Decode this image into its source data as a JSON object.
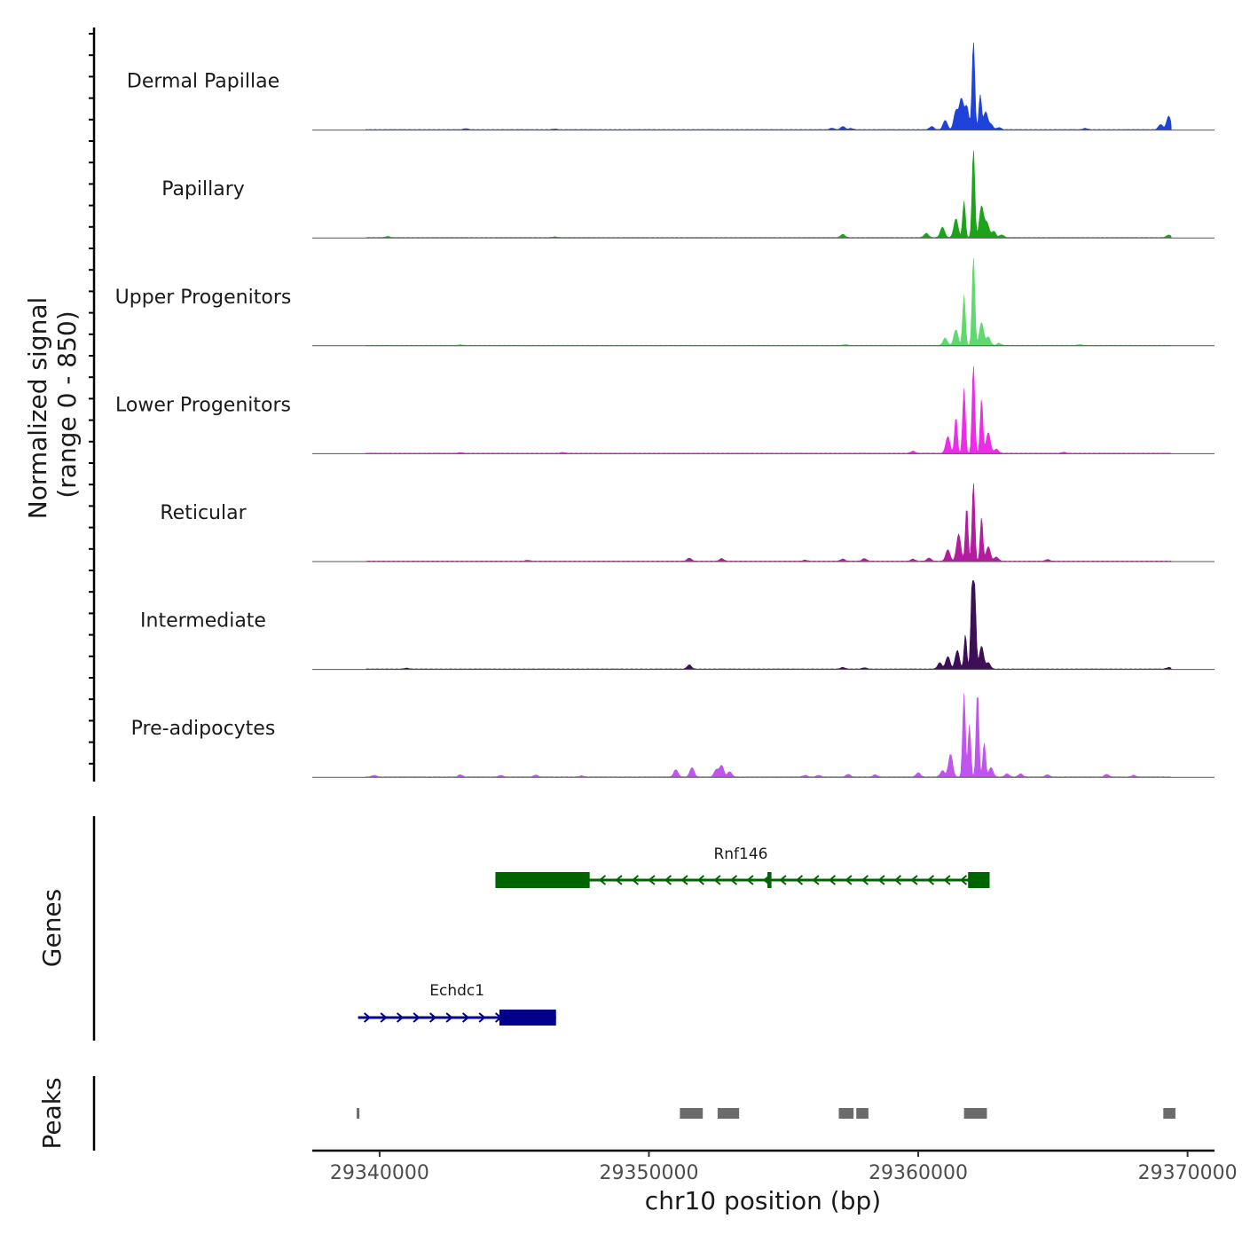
{
  "chart_data": {
    "type": "area",
    "title": "",
    "xlabel": "chr10 position (bp)",
    "ylabel_line1": "Normalized signal",
    "ylabel_line2": "(range 0 - 850)",
    "y_range": [
      0,
      850
    ],
    "xlim": [
      29337500,
      29371000
    ],
    "x_ticks": [
      29340000,
      29350000,
      29360000,
      29370000
    ],
    "x_tick_labels": [
      "29340000",
      "29350000",
      "29360000",
      "29370000"
    ],
    "tracks": [
      {
        "name": "Dermal Papillae",
        "color": "#1f43d9",
        "peaks": [
          [
            29343200,
            10
          ],
          [
            29346500,
            6
          ],
          [
            29356800,
            14
          ],
          [
            29357200,
            30
          ],
          [
            29357500,
            12
          ],
          [
            29360500,
            30
          ],
          [
            29361000,
            90
          ],
          [
            29361400,
            180
          ],
          [
            29361600,
            290
          ],
          [
            29361800,
            220
          ],
          [
            29362050,
            850
          ],
          [
            29362300,
            330
          ],
          [
            29362500,
            170
          ],
          [
            29362700,
            50
          ],
          [
            29363000,
            20
          ],
          [
            29366200,
            12
          ],
          [
            29369000,
            50
          ],
          [
            29369300,
            130
          ]
        ]
      },
      {
        "name": "Papillary",
        "color": "#1ca31a",
        "peaks": [
          [
            29340300,
            10
          ],
          [
            29346500,
            6
          ],
          [
            29357200,
            30
          ],
          [
            29360300,
            40
          ],
          [
            29360900,
            100
          ],
          [
            29361400,
            180
          ],
          [
            29361700,
            350
          ],
          [
            29362050,
            850
          ],
          [
            29362350,
            300
          ],
          [
            29362550,
            140
          ],
          [
            29362800,
            60
          ],
          [
            29363100,
            25
          ],
          [
            29369300,
            25
          ]
        ]
      },
      {
        "name": "Upper Progenitors",
        "color": "#5fd96e",
        "peaks": [
          [
            29343000,
            6
          ],
          [
            29357300,
            8
          ],
          [
            29361000,
            70
          ],
          [
            29361400,
            150
          ],
          [
            29361700,
            480
          ],
          [
            29362050,
            850
          ],
          [
            29362350,
            220
          ],
          [
            29362600,
            80
          ],
          [
            29363000,
            20
          ],
          [
            29366000,
            8
          ]
        ]
      },
      {
        "name": "Lower Progenitors",
        "color": "#ec2ce6",
        "peaks": [
          [
            29343000,
            6
          ],
          [
            29346800,
            8
          ],
          [
            29359800,
            20
          ],
          [
            29361100,
            160
          ],
          [
            29361400,
            350
          ],
          [
            29361700,
            620
          ],
          [
            29362050,
            850
          ],
          [
            29362350,
            520
          ],
          [
            29362600,
            200
          ],
          [
            29362900,
            40
          ],
          [
            29365400,
            10
          ]
        ]
      },
      {
        "name": "Reticular",
        "color": "#b31c9f",
        "peaks": [
          [
            29345500,
            8
          ],
          [
            29351500,
            30
          ],
          [
            29352700,
            25
          ],
          [
            29355800,
            10
          ],
          [
            29357200,
            20
          ],
          [
            29358000,
            25
          ],
          [
            29359800,
            20
          ],
          [
            29360400,
            30
          ],
          [
            29361100,
            110
          ],
          [
            29361500,
            260
          ],
          [
            29361800,
            520
          ],
          [
            29362050,
            760
          ],
          [
            29362350,
            420
          ],
          [
            29362600,
            140
          ],
          [
            29362900,
            40
          ],
          [
            29364800,
            15
          ]
        ]
      },
      {
        "name": "Intermediate",
        "color": "#3d0f57",
        "peaks": [
          [
            29341000,
            8
          ],
          [
            29351500,
            40
          ],
          [
            29357200,
            15
          ],
          [
            29358000,
            12
          ],
          [
            29360800,
            60
          ],
          [
            29361100,
            120
          ],
          [
            29361450,
            180
          ],
          [
            29361750,
            330
          ],
          [
            29362000,
            800
          ],
          [
            29362100,
            700
          ],
          [
            29362350,
            220
          ],
          [
            29362600,
            60
          ],
          [
            29369300,
            15
          ]
        ]
      },
      {
        "name": "Pre-adipocytes",
        "color": "#c054ef",
        "peaks": [
          [
            29339800,
            15
          ],
          [
            29343000,
            20
          ],
          [
            29344500,
            15
          ],
          [
            29345800,
            18
          ],
          [
            29347500,
            10
          ],
          [
            29351000,
            70
          ],
          [
            29351600,
            90
          ],
          [
            29352500,
            70
          ],
          [
            29352700,
            110
          ],
          [
            29353000,
            50
          ],
          [
            29355800,
            15
          ],
          [
            29356300,
            15
          ],
          [
            29357400,
            25
          ],
          [
            29358400,
            20
          ],
          [
            29360000,
            40
          ],
          [
            29360900,
            60
          ],
          [
            29361200,
            220
          ],
          [
            29361700,
            800
          ],
          [
            29361900,
            500
          ],
          [
            29362200,
            820
          ],
          [
            29362450,
            330
          ],
          [
            29362700,
            90
          ],
          [
            29363300,
            30
          ],
          [
            29363800,
            30
          ],
          [
            29364800,
            20
          ],
          [
            29367000,
            25
          ],
          [
            29368000,
            15
          ]
        ]
      }
    ],
    "genes_label": "Genes",
    "genes": [
      {
        "name": "Rnf146",
        "strand": "-",
        "color": "#006400",
        "start": 29344300,
        "end": 29362650,
        "exons": [
          [
            29344300,
            29347800
          ],
          [
            29354400,
            29354550
          ],
          [
            29361850,
            29362650
          ]
        ]
      },
      {
        "name": "Echdc1",
        "strand": "+",
        "color": "#00008b",
        "start": 29339200,
        "end": 29346550,
        "exons": [
          [
            29344450,
            29346550
          ]
        ]
      }
    ],
    "peaks_label": "Peaks",
    "peak_regions": [
      [
        29339150,
        29339250
      ],
      [
        29351150,
        29352000
      ],
      [
        29352550,
        29353350
      ],
      [
        29357050,
        29357600
      ],
      [
        29357700,
        29358150
      ],
      [
        29361700,
        29362550
      ],
      [
        29369100,
        29369550
      ]
    ],
    "peak_color": "#6b6b6b"
  }
}
